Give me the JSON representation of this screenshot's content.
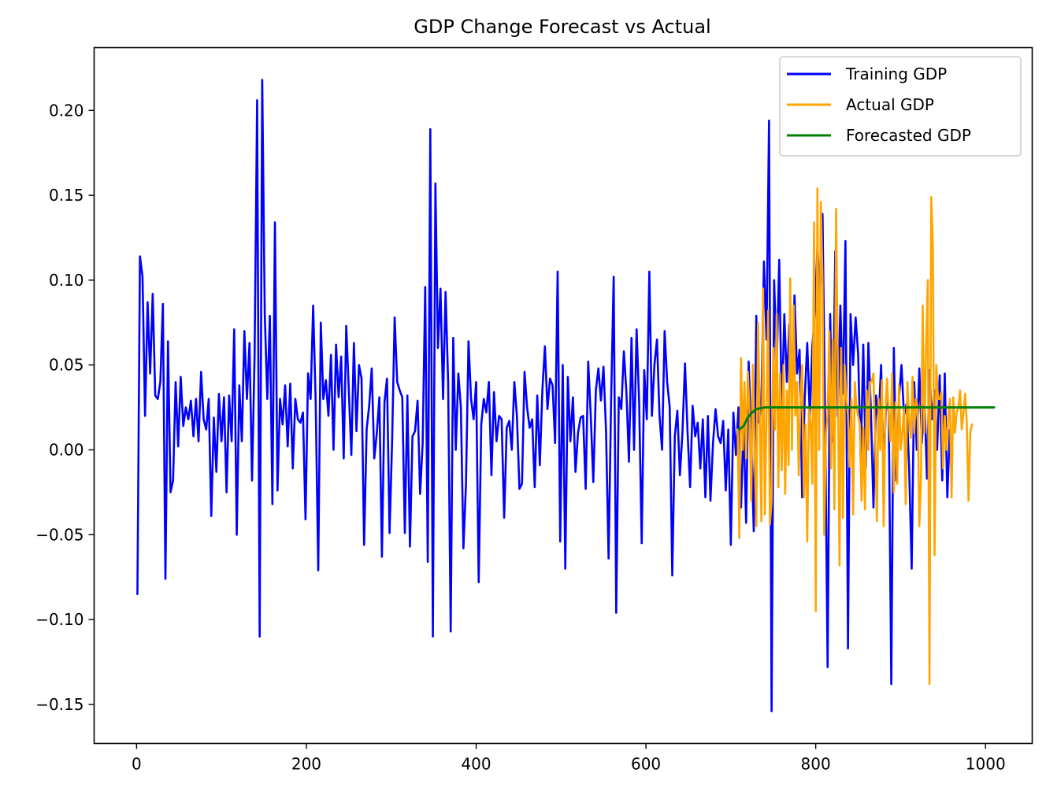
{
  "chart_data": {
    "type": "line",
    "title": "GDP Change Forecast vs Actual",
    "xlabel": "",
    "ylabel": "",
    "xlim": [
      -50,
      1055
    ],
    "ylim": [
      -0.173,
      0.237
    ],
    "xticks": [
      0,
      200,
      400,
      600,
      800,
      1000
    ],
    "xtick_labels": [
      "0",
      "200",
      "400",
      "600",
      "800",
      "1000"
    ],
    "yticks": [
      -0.15,
      -0.1,
      -0.05,
      0.0,
      0.05,
      0.1,
      0.15,
      0.2
    ],
    "ytick_labels": [
      "−0.15",
      "−0.10",
      "−0.05",
      "0.00",
      "0.05",
      "0.10",
      "0.15",
      "0.20"
    ],
    "grid": false,
    "legend_position": "top-right",
    "series": [
      {
        "name": "Training GDP",
        "color": "#0000ff",
        "x_start": 1,
        "x_step": 3,
        "values": [
          -0.085,
          0.114,
          0.102,
          0.02,
          0.087,
          0.045,
          0.092,
          0.032,
          0.03,
          0.04,
          0.086,
          -0.076,
          0.064,
          -0.025,
          -0.018,
          0.04,
          0.002,
          0.043,
          0.014,
          0.025,
          0.018,
          0.029,
          0.008,
          0.03,
          0.005,
          0.046,
          0.018,
          0.012,
          0.03,
          -0.039,
          0.019,
          -0.013,
          0.033,
          0.005,
          0.031,
          -0.025,
          0.032,
          0.005,
          0.071,
          -0.05,
          0.038,
          0.005,
          0.07,
          0.03,
          0.063,
          -0.018,
          0.055,
          0.206,
          -0.11,
          0.218,
          0.08,
          0.03,
          0.079,
          -0.032,
          0.134,
          -0.024,
          0.03,
          0.015,
          0.038,
          0.002,
          0.039,
          -0.011,
          0.03,
          0.018,
          0.016,
          0.022,
          -0.041,
          0.045,
          0.03,
          0.085,
          0.028,
          -0.071,
          0.075,
          0.03,
          0.041,
          0.02,
          0.056,
          0.0,
          0.062,
          0.031,
          0.055,
          -0.005,
          0.073,
          0.035,
          -0.003,
          0.063,
          0.011,
          0.05,
          0.042,
          -0.056,
          0.012,
          0.026,
          0.048,
          -0.005,
          0.01,
          0.031,
          -0.063,
          0.028,
          0.042,
          -0.049,
          0.005,
          0.078,
          0.04,
          0.035,
          0.031,
          -0.049,
          0.032,
          -0.057,
          0.008,
          0.011,
          0.029,
          -0.026,
          0.004,
          0.096,
          -0.066,
          0.189,
          -0.11,
          0.157,
          0.06,
          0.095,
          0.03,
          0.093,
          0.04,
          -0.107,
          0.066,
          0.0,
          0.045,
          0.025,
          -0.058,
          -0.02,
          0.064,
          0.03,
          0.018,
          0.04,
          -0.078,
          0.015,
          0.03,
          0.022,
          0.04,
          -0.015,
          0.034,
          0.005,
          0.02,
          0.018,
          -0.04,
          0.013,
          0.017,
          0.0,
          0.04,
          0.02,
          -0.023,
          -0.02,
          0.046,
          0.025,
          0.013,
          0.018,
          -0.022,
          0.032,
          -0.009,
          0.035,
          0.061,
          0.024,
          0.042,
          0.038,
          0.004,
          0.105,
          -0.054,
          0.05,
          -0.07,
          0.043,
          0.005,
          0.031,
          -0.013,
          0.01,
          0.019,
          0.02,
          -0.023,
          0.052,
          0.02,
          -0.019,
          0.035,
          0.048,
          0.029,
          0.049,
          0.011,
          -0.064,
          0.03,
          0.102,
          -0.096,
          0.031,
          0.024,
          0.058,
          0.034,
          -0.007,
          0.066,
          0.0,
          0.071,
          0.028,
          -0.055,
          0.047,
          0.018,
          0.105,
          0.02,
          0.05,
          0.065,
          0.02,
          0.0,
          0.07,
          0.04,
          0.025,
          -0.074,
          0.008,
          0.023,
          -0.015,
          0.01,
          0.051,
          0.011,
          -0.022,
          0.026,
          0.008,
          0.016,
          -0.011,
          0.018,
          -0.028,
          0.02,
          -0.03,
          0.004,
          0.024,
          0.008,
          0.004,
          0.017,
          -0.024,
          0.012,
          -0.056,
          0.022,
          -0.003,
          0.025,
          -0.034,
          0.016,
          -0.043,
          0.052,
          0.008,
          -0.048,
          0.079,
          0.016,
          0.028,
          0.111,
          0.065,
          0.194,
          -0.154,
          0.1,
          0.05,
          0.112,
          0.022,
          0.08,
          0.04,
          0.074,
          0.031,
          0.091,
          0.045,
          0.059,
          -0.028,
          0.03,
          0.063,
          0.02,
          0.061,
          0.08,
          0.12,
          0.093,
          0.139,
          0.02,
          -0.128,
          0.08,
          0.005,
          0.117,
          0.02,
          0.085,
          0.033,
          0.123,
          -0.117,
          0.08,
          0.05,
          0.078,
          0.056,
          -0.007,
          0.062,
          -0.01,
          0.063,
          0.023,
          -0.034,
          0.032,
          0.016,
          0.05,
          -0.012,
          0.03,
          0.022,
          -0.138,
          0.06,
          -0.018,
          0.03,
          0.05,
          0.02,
          0.027,
          -0.01,
          -0.07,
          0.04,
          0.0,
          0.048,
          0.004,
          0.032,
          -0.017,
          0.047,
          0.018,
          0.035,
          0.0,
          0.044,
          -0.018,
          0.045,
          -0.028,
          0.012
        ]
      },
      {
        "name": "Actual GDP",
        "color": "#ffa500",
        "x_start": 708,
        "x_step": 2,
        "values": [
          0.012,
          -0.052,
          0.054,
          0.0,
          0.04,
          -0.005,
          0.046,
          0.022,
          -0.03,
          0.05,
          0.0,
          -0.045,
          0.075,
          0.02,
          -0.042,
          0.095,
          -0.038,
          0.02,
          0.082,
          -0.044,
          -0.03,
          0.06,
          0.012,
          0.08,
          -0.022,
          0.045,
          -0.012,
          0.05,
          -0.026,
          0.035,
          -0.009,
          0.101,
          0.0,
          0.085,
          0.02,
          0.04,
          -0.015,
          0.03,
          0.05,
          -0.028,
          0.015,
          -0.054,
          0.025,
          0.015,
          -0.02,
          0.134,
          -0.095,
          0.154,
          0.0,
          0.146,
          0.1,
          -0.05,
          0.01,
          0.02,
          0.07,
          -0.011,
          0.065,
          -0.035,
          0.142,
          0.05,
          -0.068,
          0.06,
          -0.04,
          0.05,
          0.032,
          0.02,
          -0.01,
          0.03,
          -0.038,
          0.04,
          0.025,
          0.02,
          0.015,
          -0.03,
          0.013,
          -0.035,
          0.035,
          0.0,
          0.04,
          0.04,
          0.045,
          0.005,
          -0.042,
          0.03,
          0.0,
          0.041,
          -0.045,
          0.021,
          0.042,
          0.02,
          0.005,
          0.045,
          -0.025,
          0.028,
          -0.02,
          0.038,
          0.0,
          0.01,
          0.025,
          -0.032,
          0.04,
          0.018,
          0.007,
          0.043,
          0.01,
          0.03,
          0.025,
          -0.045,
          -0.016,
          0.085,
          0.01,
          0.06,
          0.1,
          -0.138,
          0.149,
          0.12,
          -0.062,
          0.05,
          0.03,
          0.03,
          0.034,
          -0.011,
          0.02,
          0.0,
          0.018,
          0.03,
          -0.028,
          0.031,
          0.01,
          0.022,
          0.025,
          0.035,
          0.012,
          0.022,
          0.033,
          0.015,
          -0.03,
          0.01,
          0.015
        ]
      },
      {
        "name": "Forecasted GDP",
        "color": "#008000",
        "x_start": 710,
        "x_step": 5,
        "values": [
          0.012,
          0.014,
          0.019,
          0.022,
          0.024,
          0.0245,
          0.025,
          0.025,
          0.025,
          0.025,
          0.025,
          0.025,
          0.025,
          0.025,
          0.025,
          0.025,
          0.025,
          0.025,
          0.025,
          0.025,
          0.025,
          0.025,
          0.025,
          0.025,
          0.025,
          0.025,
          0.025,
          0.025,
          0.025,
          0.025,
          0.025,
          0.025,
          0.025,
          0.025,
          0.025,
          0.025,
          0.025,
          0.025,
          0.025,
          0.025,
          0.025,
          0.025,
          0.025,
          0.025,
          0.025,
          0.025,
          0.025,
          0.025,
          0.025,
          0.025,
          0.025,
          0.025,
          0.025,
          0.025,
          0.025,
          0.025,
          0.025,
          0.025,
          0.025,
          0.025,
          0.025
        ]
      }
    ]
  }
}
